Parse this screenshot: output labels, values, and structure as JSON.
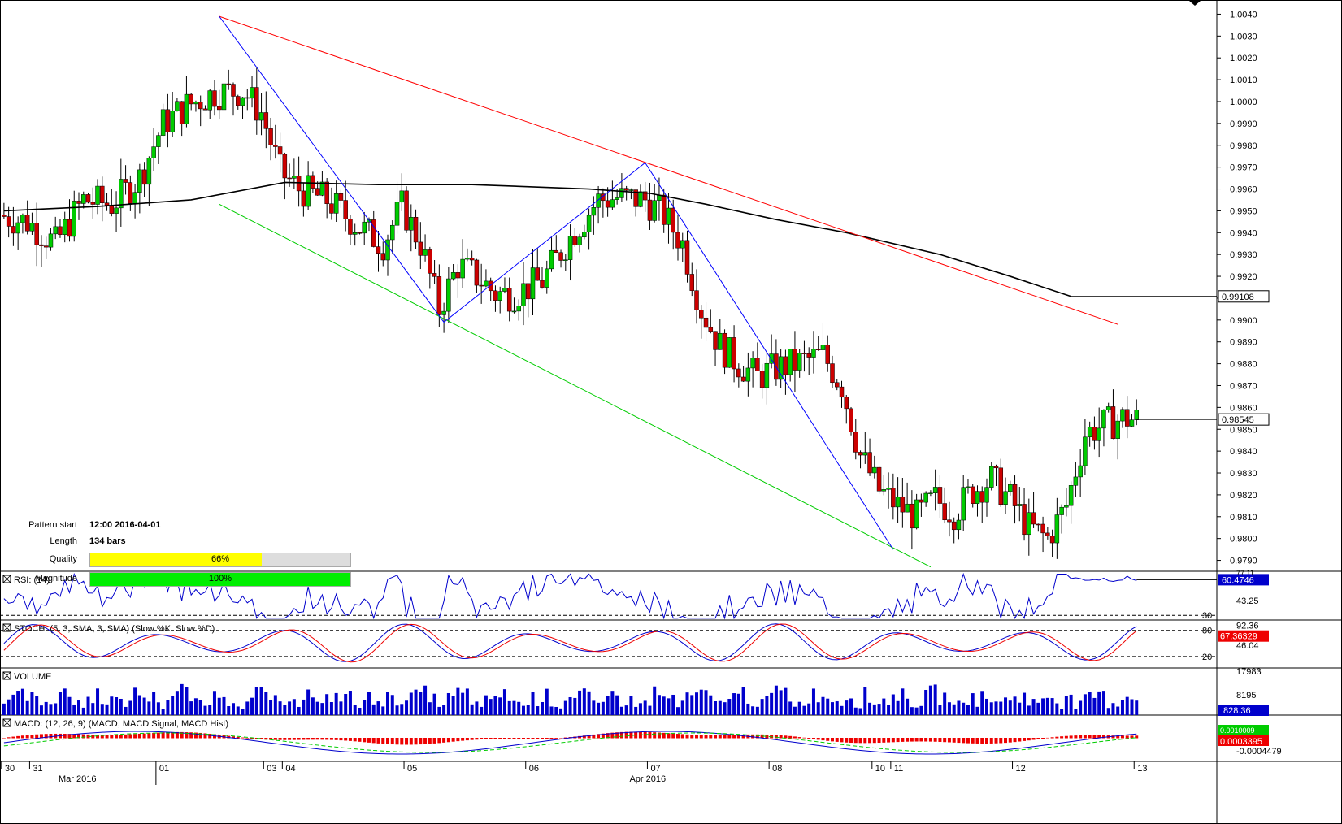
{
  "chart_data": {
    "type": "candlestick",
    "instrument_note": "",
    "price_axis": {
      "min": 0.9785,
      "max": 1.0045,
      "ticks": [
        "1.0040",
        "1.0030",
        "1.0020",
        "1.0010",
        "1.0000",
        "0.9990",
        "0.9980",
        "0.9970",
        "0.9960",
        "0.9950",
        "0.9940",
        "0.9930",
        "0.9920",
        "0.9910",
        "0.9900",
        "0.9890",
        "0.9880",
        "0.9870",
        "0.9860",
        "0.9850",
        "0.9840",
        "0.9830",
        "0.9820",
        "0.9810",
        "0.9800",
        "0.9790"
      ],
      "tick_values": [
        1.004,
        1.003,
        1.002,
        1.001,
        1.0,
        0.999,
        0.998,
        0.997,
        0.996,
        0.995,
        0.994,
        0.993,
        0.992,
        0.991,
        0.99,
        0.989,
        0.988,
        0.987,
        0.986,
        0.985,
        0.984,
        0.983,
        0.982,
        0.981,
        0.98,
        0.979
      ],
      "ma_label": "0.99108",
      "ma_value": 0.99108,
      "last_label": "0.98545",
      "last_value": 0.98545
    },
    "time_axis": {
      "day_labels": [
        "30",
        "31",
        "01",
        "03",
        "04",
        "05",
        "06",
        "07",
        "08",
        "10",
        "11",
        "12",
        "13"
      ],
      "day_bars": [
        0,
        6,
        33,
        56,
        60,
        86,
        112,
        138,
        164,
        186,
        190,
        216,
        242
      ],
      "month_labels": [
        "Mar 2016",
        "Apr 2016"
      ],
      "month_bars": [
        16,
        138
      ]
    },
    "ohlc_note": "open/high/low/close per bar in price units",
    "candles": [],
    "ma_points": [
      [
        0,
        0.995
      ],
      [
        20,
        0.9952
      ],
      [
        40,
        0.9955
      ],
      [
        60,
        0.9963
      ],
      [
        80,
        0.9962
      ],
      [
        100,
        0.9962
      ],
      [
        125,
        0.996
      ],
      [
        138,
        0.9958
      ],
      [
        150,
        0.9953
      ],
      [
        165,
        0.9946
      ],
      [
        180,
        0.994
      ],
      [
        200,
        0.993
      ],
      [
        215,
        0.992
      ],
      [
        228,
        0.99108
      ]
    ],
    "trendlines": [
      {
        "color": "#ff0000",
        "from": [
          46,
          1.0039
        ],
        "to": [
          238,
          0.9898
        ]
      },
      {
        "color": "#00cc00",
        "from": [
          46,
          0.9953
        ],
        "to": [
          198,
          0.9787
        ]
      },
      {
        "color": "#0000ff",
        "points": [
          [
            46,
            1.0039
          ],
          [
            94,
            0.9899
          ],
          [
            137,
            0.9972
          ],
          [
            190,
            0.9795
          ]
        ]
      }
    ],
    "pattern_info": {
      "start_label": "Pattern start",
      "start_value": "12:00 2016-04-01",
      "length_label": "Length",
      "length_value": "134 bars",
      "quality_label": "Quality",
      "quality_pct": 66,
      "quality_text": "66%",
      "magnitude_label": "Magnitude",
      "magnitude_pct": 100,
      "magnitude_text": "100%"
    },
    "rsi": {
      "title": "RSI: (14)",
      "level_label": "30",
      "upper_label": "43.25",
      "last_label": "60.4746",
      "top_partial": "77.11"
    },
    "stoch": {
      "title": "STOCH: (5, 3, SMA, 3, SMA) (Slow %K, Slow %D)",
      "labels": [
        "92.36",
        "80",
        "67.36329",
        "46.04",
        "20"
      ]
    },
    "volume": {
      "title": "VOLUME",
      "labels": [
        "17983",
        "8195",
        "828.36"
      ]
    },
    "macd": {
      "title": "MACD: (12, 26, 9) (MACD, MACD Signal, MACD Hist)",
      "labels": [
        "0.0003395",
        "-0.0004479",
        "0.0010009"
      ]
    }
  }
}
